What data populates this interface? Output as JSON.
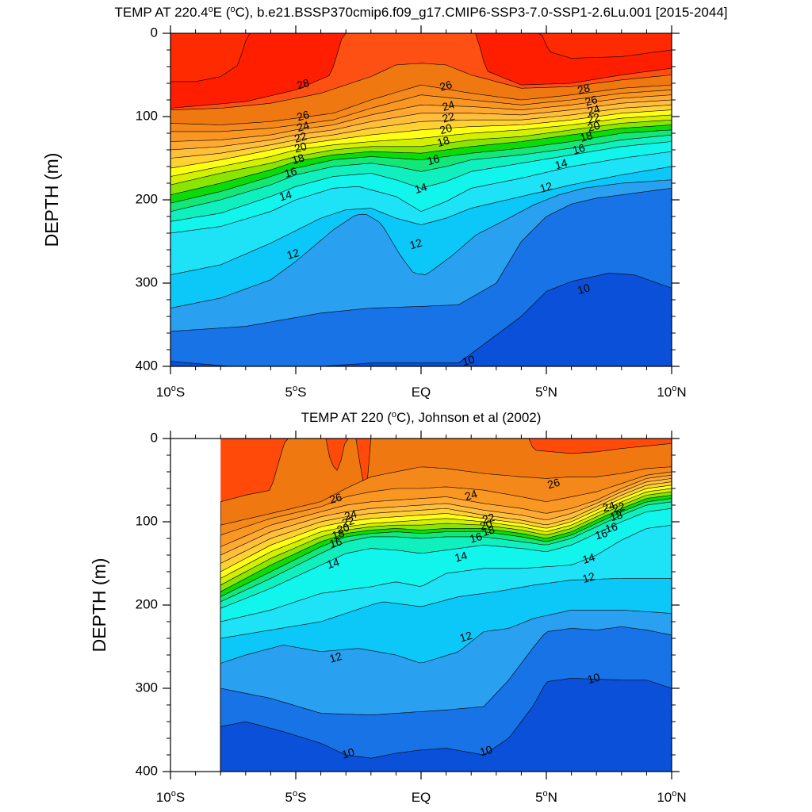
{
  "chart_data": [
    {
      "type": "contour",
      "title_text": "TEMP AT 220.4",
      "title_sup": "o",
      "title_rest": "E (",
      "title_sup2": "o",
      "title_end": "C), b.e21.BSSP370cmip6.f09_g17.CMIP6-SSP3-7.0-SSP1-2.6Lu.001 [2015-2044]",
      "ylabel": "DEPTH (m)",
      "xlim": [
        -10,
        10
      ],
      "ylim": [
        400,
        0
      ],
      "y_ticks": [
        "0",
        "100",
        "200",
        "300",
        "400"
      ],
      "y_tick_values": [
        0,
        100,
        200,
        300,
        400
      ],
      "x_ticks": [
        {
          "value": -10,
          "num": "10",
          "sup": "o",
          "hemi": "S"
        },
        {
          "value": -5,
          "num": "5",
          "sup": "o",
          "hemi": "S"
        },
        {
          "value": 0,
          "num": "EQ",
          "sup": "",
          "hemi": ""
        },
        {
          "value": 5,
          "num": "5",
          "sup": "o",
          "hemi": "N"
        },
        {
          "value": 10,
          "num": "10",
          "sup": "o",
          "hemi": "N"
        }
      ],
      "contour_interval": 1,
      "contour_labels": [
        {
          "text": "28",
          "lon": -4.7,
          "depth": 62
        },
        {
          "text": "26",
          "lon": -4.7,
          "depth": 100
        },
        {
          "text": "24",
          "lon": -4.7,
          "depth": 113
        },
        {
          "text": "22",
          "lon": -4.8,
          "depth": 126
        },
        {
          "text": "20",
          "lon": -4.8,
          "depth": 138
        },
        {
          "text": "18",
          "lon": -4.9,
          "depth": 152
        },
        {
          "text": "16",
          "lon": -5.2,
          "depth": 168
        },
        {
          "text": "14",
          "lon": -5.4,
          "depth": 196
        },
        {
          "text": "12",
          "lon": -5.1,
          "depth": 266
        },
        {
          "text": "26",
          "lon": 1.0,
          "depth": 64
        },
        {
          "text": "24",
          "lon": 1.1,
          "depth": 88
        },
        {
          "text": "22",
          "lon": 1.1,
          "depth": 102
        },
        {
          "text": "20",
          "lon": 1.0,
          "depth": 116
        },
        {
          "text": "18",
          "lon": 0.9,
          "depth": 131
        },
        {
          "text": "16",
          "lon": 0.5,
          "depth": 153
        },
        {
          "text": "14",
          "lon": 0.0,
          "depth": 187
        },
        {
          "text": "12",
          "lon": -0.2,
          "depth": 254
        },
        {
          "text": "28",
          "lon": 6.5,
          "depth": 68
        },
        {
          "text": "26",
          "lon": 6.8,
          "depth": 82
        },
        {
          "text": "24",
          "lon": 6.9,
          "depth": 93
        },
        {
          "text": "22",
          "lon": 6.9,
          "depth": 103
        },
        {
          "text": "20",
          "lon": 6.9,
          "depth": 113
        },
        {
          "text": "18",
          "lon": 6.6,
          "depth": 125
        },
        {
          "text": "16",
          "lon": 6.3,
          "depth": 140
        },
        {
          "text": "14",
          "lon": 5.6,
          "depth": 158
        },
        {
          "text": "12",
          "lon": 5.0,
          "depth": 186
        },
        {
          "text": "10",
          "lon": 6.5,
          "depth": 308
        },
        {
          "text": "10",
          "lon": 1.9,
          "depth": 394
        }
      ]
    },
    {
      "type": "contour",
      "title_text": "TEMP AT 220 (",
      "title_sup": "o",
      "title_rest": "C), Johnson et al (2002)",
      "title_sup2": "",
      "title_end": "",
      "ylabel": "DEPTH (m)",
      "xlim": [
        -10,
        10
      ],
      "ylim": [
        400,
        0
      ],
      "data_lon_range": [
        -8,
        10
      ],
      "y_ticks": [
        "0",
        "100",
        "200",
        "300",
        "400"
      ],
      "y_tick_values": [
        0,
        100,
        200,
        300,
        400
      ],
      "x_ticks": [
        {
          "value": -10,
          "num": "10",
          "sup": "o",
          "hemi": "S"
        },
        {
          "value": -5,
          "num": "5",
          "sup": "o",
          "hemi": "S"
        },
        {
          "value": 0,
          "num": "EQ",
          "sup": "",
          "hemi": ""
        },
        {
          "value": 5,
          "num": "5",
          "sup": "o",
          "hemi": "N"
        },
        {
          "value": 10,
          "num": "10",
          "sup": "o",
          "hemi": "N"
        }
      ],
      "contour_interval": 1,
      "contour_labels": [
        {
          "text": "26",
          "lon": -3.4,
          "depth": 73
        },
        {
          "text": "24",
          "lon": -2.8,
          "depth": 93
        },
        {
          "text": "22",
          "lon": -2.9,
          "depth": 101
        },
        {
          "text": "20",
          "lon": -3.1,
          "depth": 109
        },
        {
          "text": "18",
          "lon": -3.3,
          "depth": 116
        },
        {
          "text": "16",
          "lon": -3.4,
          "depth": 126
        },
        {
          "text": "14",
          "lon": -3.5,
          "depth": 151
        },
        {
          "text": "12",
          "lon": -3.4,
          "depth": 264
        },
        {
          "text": "10",
          "lon": -2.9,
          "depth": 379
        },
        {
          "text": "26",
          "lon": 5.3,
          "depth": 55
        },
        {
          "text": "24",
          "lon": 2.0,
          "depth": 69
        },
        {
          "text": "22",
          "lon": 2.7,
          "depth": 97
        },
        {
          "text": "20",
          "lon": 2.6,
          "depth": 105
        },
        {
          "text": "18",
          "lon": 2.7,
          "depth": 112
        },
        {
          "text": "16",
          "lon": 2.2,
          "depth": 120
        },
        {
          "text": "14",
          "lon": 1.6,
          "depth": 143
        },
        {
          "text": "12",
          "lon": 1.8,
          "depth": 239
        },
        {
          "text": "10",
          "lon": 2.6,
          "depth": 376
        },
        {
          "text": "24",
          "lon": 7.5,
          "depth": 83
        },
        {
          "text": "22",
          "lon": 7.9,
          "depth": 84
        },
        {
          "text": "18",
          "lon": 7.8,
          "depth": 94
        },
        {
          "text": "16",
          "lon": 7.6,
          "depth": 108
        },
        {
          "text": "16",
          "lon": 7.2,
          "depth": 116
        },
        {
          "text": "14",
          "lon": 6.7,
          "depth": 145
        },
        {
          "text": "12",
          "lon": 6.7,
          "depth": 168
        },
        {
          "text": "10",
          "lon": 6.9,
          "depth": 289
        }
      ]
    }
  ]
}
